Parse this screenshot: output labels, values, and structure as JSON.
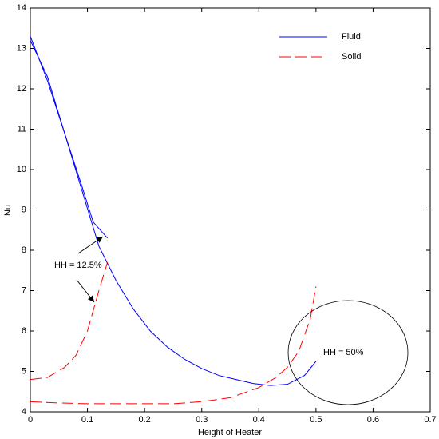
{
  "chart_data": {
    "type": "line",
    "xlabel": "Height of Heater",
    "ylabel": "Nu",
    "xlim": [
      0,
      0.7
    ],
    "xticks": [
      0,
      0.1,
      0.2,
      0.3,
      0.4,
      0.5,
      0.6,
      0.7
    ],
    "ylim": [
      4,
      14
    ],
    "yticks": [
      4,
      5,
      6,
      7,
      8,
      9,
      10,
      11,
      12,
      13,
      14
    ],
    "legend": "upper right",
    "annotations": [
      "HH = 12.5%",
      "HH = 50%"
    ],
    "series": [
      {
        "name": "Fluid",
        "color": "#0000ff",
        "dashed": false,
        "curves": [
          {
            "x": [
              0,
              0.03,
              0.06,
              0.09,
              0.11,
              0.135
            ],
            "values": [
              13.2,
              12.3,
              10.9,
              9.6,
              8.7,
              8.3
            ]
          },
          {
            "x": [
              0,
              0.03,
              0.06,
              0.09,
              0.12,
              0.15,
              0.18,
              0.21,
              0.24,
              0.27,
              0.3,
              0.33,
              0.36,
              0.39,
              0.42,
              0.45,
              0.48,
              0.5
            ],
            "values": [
              13.3,
              12.2,
              10.9,
              9.5,
              8.1,
              7.25,
              6.55,
              6.0,
              5.6,
              5.3,
              5.07,
              4.9,
              4.8,
              4.7,
              4.65,
              4.68,
              4.9,
              5.25
            ]
          }
        ]
      },
      {
        "name": "Solid",
        "color": "#ff0000",
        "dashed": true,
        "curves": [
          {
            "x": [
              0,
              0.03,
              0.06,
              0.08,
              0.1,
              0.12,
              0.135
            ],
            "values": [
              4.8,
              4.85,
              5.1,
              5.4,
              6.0,
              7.0,
              7.7
            ]
          },
          {
            "x": [
              0,
              0.05,
              0.1,
              0.15,
              0.2,
              0.25,
              0.3,
              0.35,
              0.4,
              0.43,
              0.45,
              0.47,
              0.49,
              0.5
            ],
            "values": [
              4.25,
              4.22,
              4.2,
              4.2,
              4.2,
              4.2,
              4.25,
              4.35,
              4.6,
              4.85,
              5.1,
              5.5,
              6.3,
              7.1
            ]
          }
        ]
      }
    ]
  }
}
